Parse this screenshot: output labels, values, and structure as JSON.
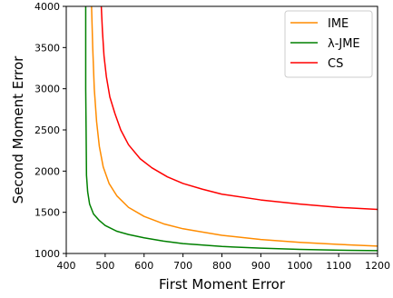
{
  "chart_data": {
    "type": "line",
    "title": "",
    "xlabel": "First Moment Error",
    "ylabel": "Second Moment Error",
    "xlim": [
      400,
      1200
    ],
    "ylim": [
      1000,
      4000
    ],
    "x_ticks": [
      400,
      500,
      600,
      700,
      800,
      900,
      1000,
      1100,
      1200
    ],
    "y_ticks": [
      1000,
      1500,
      2000,
      2500,
      3000,
      3500,
      4000
    ],
    "grid": false,
    "legend_position": "top-right",
    "series": [
      {
        "name": "IME",
        "color": "#ff8c00",
        "x": [
          465,
          468,
          472,
          478,
          485,
          495,
          510,
          530,
          560,
          600,
          650,
          700,
          800,
          900,
          1000,
          1100,
          1200
        ],
        "y": [
          4000,
          3500,
          3000,
          2600,
          2300,
          2050,
          1850,
          1700,
          1560,
          1450,
          1360,
          1300,
          1220,
          1170,
          1135,
          1110,
          1090
        ]
      },
      {
        "name": "λ-JME",
        "color": "#008000",
        "x": [
          450,
          450,
          451,
          452,
          455,
          460,
          470,
          485,
          500,
          530,
          560,
          600,
          650,
          700,
          800,
          900,
          1000,
          1100,
          1200
        ],
        "y": [
          4000,
          3000,
          2500,
          1950,
          1750,
          1600,
          1480,
          1400,
          1340,
          1270,
          1230,
          1190,
          1150,
          1120,
          1085,
          1065,
          1050,
          1040,
          1035
        ]
      },
      {
        "name": "CS",
        "color": "#ff0000",
        "x": [
          490,
          493,
          497,
          503,
          512,
          525,
          540,
          560,
          590,
          620,
          660,
          700,
          750,
          800,
          900,
          1000,
          1100,
          1200
        ],
        "y": [
          4000,
          3700,
          3400,
          3150,
          2900,
          2700,
          2500,
          2320,
          2150,
          2040,
          1930,
          1850,
          1780,
          1720,
          1650,
          1600,
          1560,
          1535
        ]
      }
    ]
  }
}
